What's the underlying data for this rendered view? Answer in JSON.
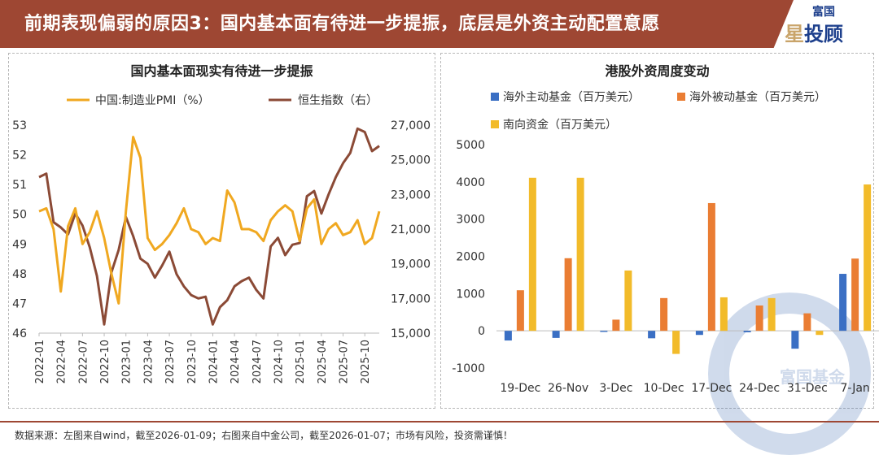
{
  "header": {
    "title": "前期表现偏弱的原因3：国内基本面有待进一步提振，底层是外资主动配置意愿",
    "logo_top": "富国",
    "logo_star": "星",
    "logo_main": "投顾"
  },
  "watermark": "富国基金",
  "footer": "数据来源：左图来自wind，截至2026-01-09；右图来自中金公司，截至2026-01-07；市场有风险，投资需谨慎！",
  "colors": {
    "banner": "#9e4733",
    "pmi": "#f0a820",
    "hsi": "#8b4a36",
    "active": "#3a6fc4",
    "passive": "#ea7d33",
    "southbound": "#f2bb2a"
  },
  "chart_data": [
    {
      "type": "line",
      "title": "国内基本面现实有待进一步提振",
      "x": [
        "2022-01",
        "2022-02",
        "2022-03",
        "2022-04",
        "2022-05",
        "2022-06",
        "2022-07",
        "2022-08",
        "2022-09",
        "2022-10",
        "2022-11",
        "2022-12",
        "2023-01",
        "2023-02",
        "2023-03",
        "2023-04",
        "2023-05",
        "2023-06",
        "2023-07",
        "2023-08",
        "2023-09",
        "2023-10",
        "2023-11",
        "2023-12",
        "2024-01",
        "2024-02",
        "2024-03",
        "2024-04",
        "2024-05",
        "2024-06",
        "2024-07",
        "2024-08",
        "2024-09",
        "2024-10",
        "2024-11",
        "2024-12",
        "2025-01",
        "2025-02",
        "2025-03",
        "2025-04",
        "2025-05",
        "2025-06",
        "2025-07",
        "2025-08",
        "2025-09",
        "2025-10",
        "2025-11",
        "2025-12"
      ],
      "xticks": [
        "2022-01",
        "2022-04",
        "2022-07",
        "2022-10",
        "2023-01",
        "2023-04",
        "2023-07",
        "2023-10",
        "2024-01",
        "2024-04",
        "2024-07",
        "2024-10",
        "2025-01",
        "2025-04",
        "2025-07",
        "2025-10"
      ],
      "series": [
        {
          "name": "中国:制造业PMI（%）",
          "axis": "left",
          "values": [
            50.1,
            50.2,
            49.5,
            47.4,
            49.6,
            50.2,
            49.0,
            49.4,
            50.1,
            49.2,
            48.0,
            47.0,
            50.1,
            52.6,
            51.9,
            49.2,
            48.8,
            49.0,
            49.3,
            49.7,
            50.2,
            49.5,
            49.4,
            49.0,
            49.2,
            49.1,
            50.8,
            50.4,
            49.5,
            49.5,
            49.4,
            49.1,
            49.8,
            50.1,
            50.3,
            50.1,
            49.1,
            50.2,
            50.5,
            49.0,
            49.5,
            49.7,
            49.3,
            49.4,
            49.8,
            49.0,
            49.2,
            50.1
          ]
        },
        {
          "name": "恒生指数（右）",
          "axis": "right",
          "values": [
            24000,
            24200,
            21400,
            21100,
            20700,
            21900,
            21200,
            19950,
            18300,
            15500,
            18500,
            19800,
            21700,
            20600,
            19300,
            19000,
            18200,
            18900,
            19700,
            18400,
            17700,
            17200,
            17000,
            17100,
            15500,
            16500,
            16900,
            17700,
            18000,
            18200,
            17500,
            17000,
            20000,
            20500,
            19500,
            20100,
            20200,
            22900,
            23200,
            21900,
            23000,
            24000,
            24800,
            25400,
            26800,
            26600,
            25500,
            25800
          ]
        }
      ],
      "yleft": {
        "min": 46,
        "max": 53,
        "ticks": [
          "46",
          "47",
          "48",
          "49",
          "50",
          "51",
          "52",
          "53"
        ]
      },
      "yright": {
        "min": 15000,
        "max": 27000,
        "ticks": [
          "15,000",
          "17,000",
          "19,000",
          "21,000",
          "23,000",
          "25,000",
          "27,000"
        ]
      },
      "legend": "top"
    },
    {
      "type": "bar",
      "title": "港股外资周度变动",
      "categories": [
        "19-Dec",
        "26-Nov",
        "3-Dec",
        "10-Dec",
        "17-Dec",
        "24-Dec",
        "31-Dec",
        "7-Jan"
      ],
      "series": [
        {
          "name": "海外主动基金（百万美元）",
          "values": [
            -260,
            -190,
            -30,
            -200,
            -110,
            -40,
            -480,
            1530
          ]
        },
        {
          "name": "海外被动基金（百万美元）",
          "values": [
            1090,
            1950,
            300,
            880,
            3430,
            680,
            470,
            1940
          ]
        },
        {
          "name": "南向资金（百万美元）",
          "values": [
            4110,
            4110,
            1620,
            -620,
            900,
            880,
            -110,
            3930
          ]
        }
      ],
      "ylim": [
        -1000,
        5000
      ],
      "yticks": [
        "-1000",
        "0",
        "1000",
        "2000",
        "3000",
        "4000",
        "5000"
      ],
      "legend": "top"
    }
  ]
}
